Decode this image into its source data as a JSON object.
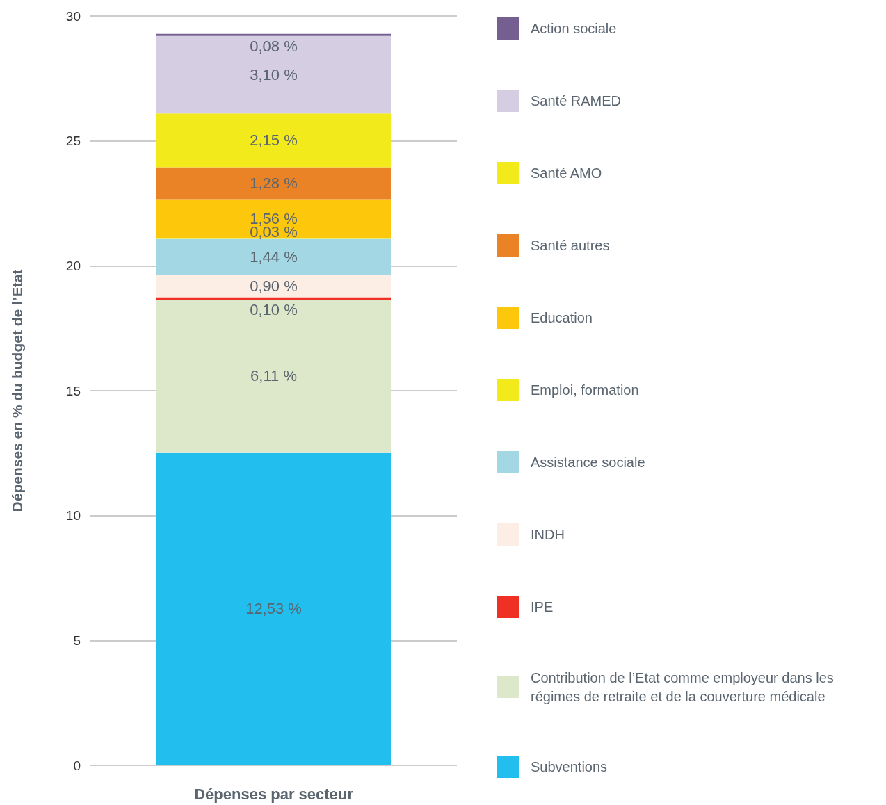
{
  "chart_data": {
    "type": "bar",
    "stacked": true,
    "xlabel": "Dépenses par secteur",
    "ylabel": "Dépenses en % du budget de l’Etat",
    "categories": [
      null
    ],
    "series": [
      {
        "name": "Subventions",
        "color": "#22bfee",
        "values": [
          12.53
        ],
        "value_labels": [
          "12,53 %"
        ]
      },
      {
        "name": "Contribution de l’Etat comme employeur dans les régimes de retraite et de la couverture médicale",
        "color": "#dde8cb",
        "values": [
          6.11
        ],
        "value_labels": [
          "6,11 %"
        ]
      },
      {
        "name": "IPE",
        "color": "#ee3124",
        "values": [
          0.1
        ],
        "value_labels": [
          "0,10 %"
        ]
      },
      {
        "name": "INDH",
        "color": "#fdeee5",
        "values": [
          0.9
        ],
        "value_labels": [
          "0,90 %"
        ]
      },
      {
        "name": "Assistance sociale",
        "color": "#a3d7e4",
        "values": [
          1.44
        ],
        "value_labels": [
          "1,44 %"
        ]
      },
      {
        "name": "Emploi, formation",
        "color": "#f3ea1c",
        "values": [
          0.03
        ],
        "value_labels": [
          "0,03 %"
        ]
      },
      {
        "name": "Education",
        "color": "#fdc70c",
        "values": [
          1.56
        ],
        "value_labels": [
          "1,56 %"
        ]
      },
      {
        "name": "Santé autres",
        "color": "#e98326",
        "values": [
          1.28
        ],
        "value_labels": [
          "1,28 %"
        ]
      },
      {
        "name": "Santé AMO",
        "color": "#f3ea1c",
        "values": [
          2.15
        ],
        "value_labels": [
          "2,15 %"
        ]
      },
      {
        "name": "Santé RAMED",
        "color": "#d5cde2",
        "values": [
          3.1
        ],
        "value_labels": [
          "3,10 %"
        ]
      },
      {
        "name": "Action sociale",
        "color": "#755f91",
        "values": [
          0.08
        ],
        "value_labels": [
          "0,08 %"
        ]
      }
    ],
    "ylim": [
      0,
      30
    ],
    "yticks": [
      0,
      5,
      10,
      15,
      20,
      25,
      30
    ],
    "grid": "y",
    "legend": "right"
  }
}
